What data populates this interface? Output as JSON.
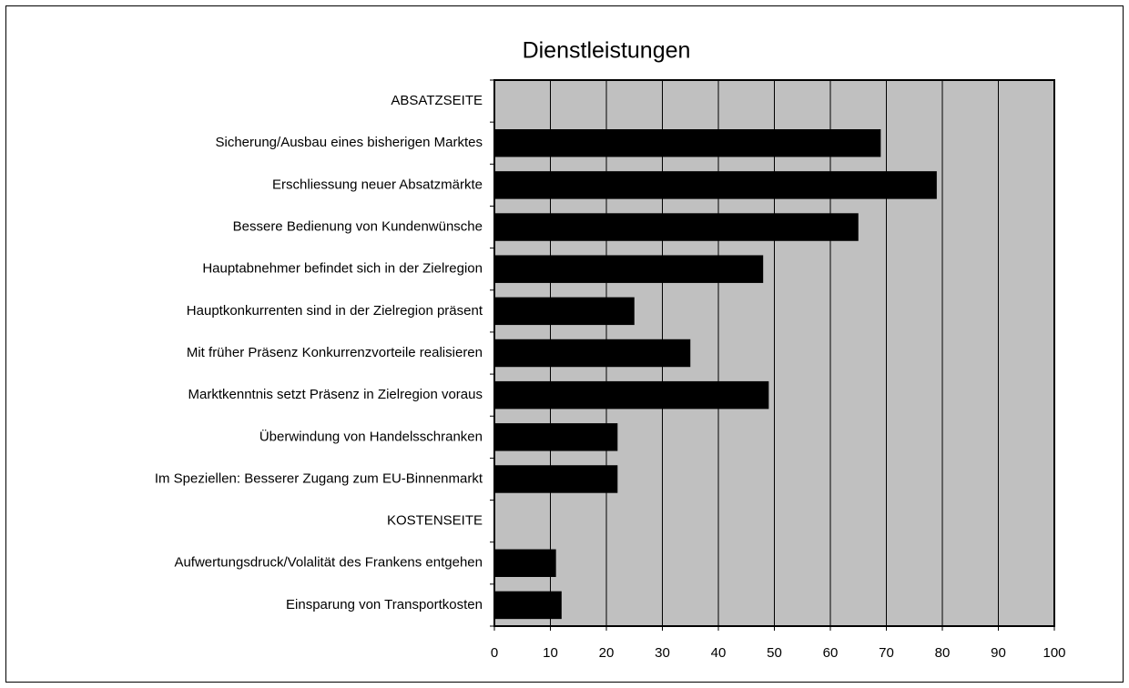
{
  "chart_data": {
    "type": "barh",
    "title": "Dienstleistungen",
    "categories": [
      "ABSATZSEITE",
      "Sicherung/Ausbau eines bisherigen Marktes",
      "Erschliessung neuer Absatzmärkte",
      "Bessere Bedienung von Kundenwünsche",
      "Hauptabnehmer befindet sich in der Zielregion",
      "Hauptkonkurrenten sind in der Zielregion präsent",
      "Mit früher Präsenz Konkurrenzvorteile realisieren",
      "Marktkenntnis setzt Präsenz in Zielregion voraus",
      "Überwindung von Handelsschranken",
      "Im Speziellen: Besserer Zugang zum EU-Binnenmarkt",
      "KOSTENSEITE",
      "Aufwertungsdruck/Volalität des Frankens entgehen",
      "Einsparung von Transportkosten"
    ],
    "values": [
      null,
      69,
      79,
      65,
      48,
      25,
      35,
      49,
      22,
      22,
      null,
      11,
      12
    ],
    "color": "#000000",
    "background": "#c0c0c0",
    "xlim": [
      0,
      100
    ],
    "xticks": [
      0,
      10,
      20,
      30,
      40,
      50,
      60,
      70,
      80,
      90,
      100
    ],
    "grid": true
  }
}
